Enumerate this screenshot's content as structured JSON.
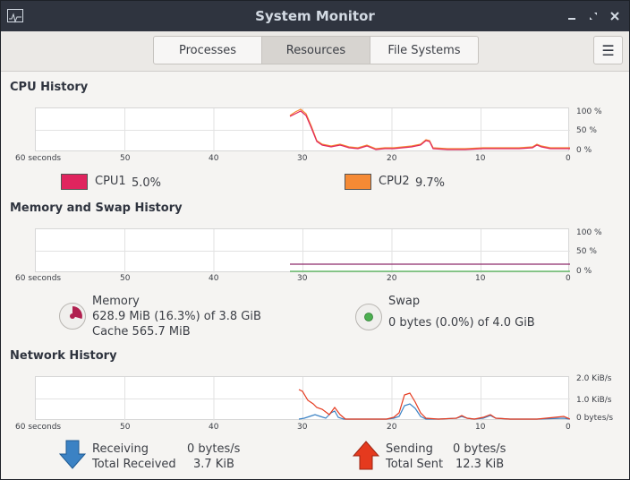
{
  "window": {
    "title": "System Monitor"
  },
  "tabs": [
    "Processes",
    "Resources",
    "File Systems"
  ],
  "sections": {
    "cpu": {
      "title": "CPU History"
    },
    "mem": {
      "title": "Memory and Swap History"
    },
    "net": {
      "title": "Network History"
    }
  },
  "axis": {
    "x_ticks": [
      "60 seconds",
      "50",
      "40",
      "30",
      "20",
      "10",
      "0"
    ],
    "pct_ticks": [
      "100 %",
      "50 %",
      "0 %"
    ],
    "net_ticks": [
      "2.0 KiB/s",
      "1.0 KiB/s",
      "0 bytes/s"
    ]
  },
  "cpu": {
    "cpu1_label": "CPU1",
    "cpu1_value": "5.0%",
    "cpu1_color": "#e0245e",
    "cpu2_label": "CPU2",
    "cpu2_value": "9.7%",
    "cpu2_color": "#f58a35"
  },
  "memory": {
    "label": "Memory",
    "usage": "628.9 MiB (16.3%) of 3.8 GiB",
    "cache": "Cache 565.7 MiB",
    "color": "#b0204f"
  },
  "swap": {
    "label": "Swap",
    "usage": "0 bytes (0.0%) of 4.0 GiB",
    "color": "#4caf50"
  },
  "network": {
    "receiving_label": "Receiving",
    "receiving_value": "0 bytes/s",
    "total_received_label": "Total Received",
    "total_received_value": "3.7 KiB",
    "sending_label": "Sending",
    "sending_value": "0 bytes/s",
    "total_sent_label": "Total Sent",
    "total_sent_value": "12.3 KiB",
    "receive_color": "#3b82c4",
    "send_color": "#e53a1e"
  }
}
